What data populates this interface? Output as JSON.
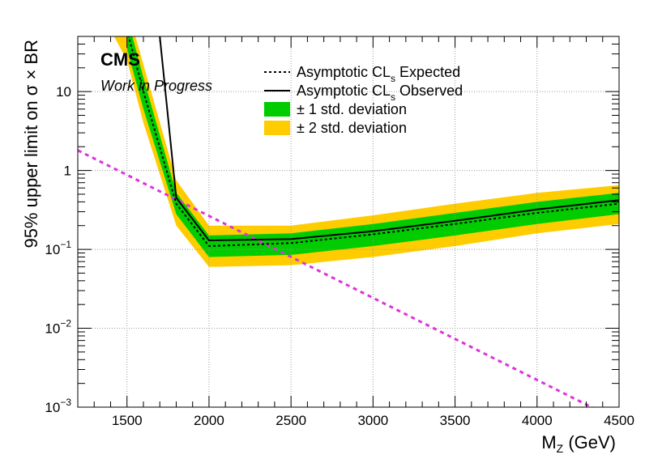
{
  "chart_data": {
    "type": "line",
    "x_scale": "linear",
    "y_scale": "log",
    "xlim": [
      1200,
      4500
    ],
    "ylim": [
      0.001,
      50
    ],
    "grid": true,
    "legend_placement": "top-center",
    "xlabel_main": "M",
    "xlabel_sub": "Z",
    "xlabel_unit": " (GeV)",
    "ylabel": "95% upper limit on  σ × BR",
    "x_ticks": [
      1500,
      2000,
      2500,
      3000,
      3500,
      4000,
      4500
    ],
    "x_tick_labels": [
      "1500",
      "2000",
      "2500",
      "3000",
      "3500",
      "4000",
      "4500"
    ],
    "y_ticks": [
      {
        "value": 0.001,
        "base": "10",
        "exp": "−3"
      },
      {
        "value": 0.01,
        "base": "10",
        "exp": "−2"
      },
      {
        "value": 0.1,
        "base": "10",
        "exp": "−1"
      },
      {
        "value": 1,
        "base": "1",
        "exp": ""
      },
      {
        "value": 10,
        "base": "10",
        "exp": ""
      }
    ],
    "labels": {
      "experiment": "CMS",
      "status": "Work in Progress"
    },
    "legend": [
      {
        "key": "expected",
        "pre": "Asymptotic CL",
        "sub": "s",
        "post": " Expected"
      },
      {
        "key": "observed",
        "pre": "Asymptotic CL",
        "sub": "s",
        "post": " Observed"
      },
      {
        "key": "band1",
        "pre": "± 1 std. deviation",
        "sub": "",
        "post": ""
      },
      {
        "key": "band2",
        "pre": "± 2 std. deviation",
        "sub": "",
        "post": ""
      }
    ],
    "series": {
      "expected": {
        "x": [
          1500,
          1600,
          1800,
          2000,
          2500,
          3000,
          3500,
          4000,
          4500
        ],
        "y": [
          60,
          10,
          0.38,
          0.11,
          0.12,
          0.155,
          0.21,
          0.29,
          0.38
        ]
      },
      "observed": {
        "x": [
          1700,
          1800,
          2000,
          2500,
          3000,
          3500,
          4000,
          4500
        ],
        "y": [
          50,
          0.45,
          0.13,
          0.135,
          0.17,
          0.23,
          0.32,
          0.42
        ]
      },
      "band1": {
        "x": [
          1500,
          1600,
          1800,
          2000,
          2500,
          3000,
          3500,
          4000,
          4500
        ],
        "lo": [
          35,
          6,
          0.28,
          0.08,
          0.085,
          0.11,
          0.15,
          0.21,
          0.28
        ],
        "hi": [
          90,
          15,
          0.52,
          0.15,
          0.16,
          0.21,
          0.29,
          0.4,
          0.52
        ]
      },
      "band2": {
        "x": [
          1400,
          1500,
          1600,
          1800,
          2000,
          2500,
          3000,
          3500,
          4000,
          4500
        ],
        "lo": [
          60,
          25,
          4,
          0.2,
          0.06,
          0.063,
          0.08,
          0.11,
          0.16,
          0.21
        ],
        "hi": [
          200,
          120,
          22,
          0.75,
          0.2,
          0.2,
          0.27,
          0.38,
          0.52,
          0.65
        ]
      },
      "theory": {
        "x": [
          1200,
          4400
        ],
        "y": [
          1.8,
          0.00085
        ]
      }
    },
    "colors": {
      "band1": "#00cc00",
      "band2": "#ffcc00",
      "theory": "#dd33dd",
      "lines": "#000000",
      "grid": "#9a9a9a"
    }
  }
}
